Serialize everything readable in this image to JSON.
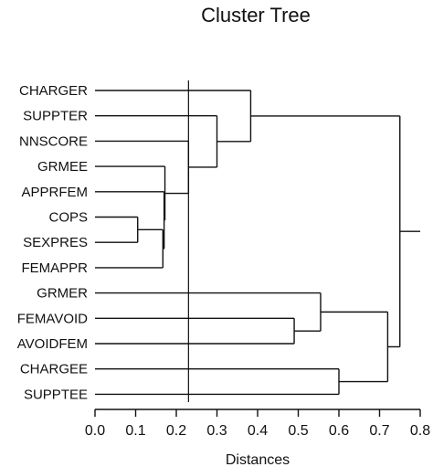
{
  "chart_data": {
    "type": "dendrogram",
    "title": "Cluster Tree",
    "xlabel": "Distances",
    "ylabel": "",
    "xlim": [
      0.0,
      0.8
    ],
    "x_ticks": [
      "0.0",
      "0.1",
      "0.2",
      "0.3",
      "0.4",
      "0.5",
      "0.6",
      "0.7",
      "0.8"
    ],
    "grid": false,
    "legend": "none",
    "reference_line": 0.23,
    "leaves": [
      "CHARGER",
      "SUPPTER",
      "NNSCORE",
      "GRMEE",
      "APPRFEM",
      "COPS",
      "SEXPRES",
      "FEMAPPR",
      "GRMER",
      "FEMAVOID",
      "AVOIDFEM",
      "CHARGEE",
      "SUPPTEE"
    ],
    "merges": [
      {
        "id": "m1",
        "left": "COPS",
        "right": "SEXPRES",
        "height": 0.105
      },
      {
        "id": "m2",
        "left": "m1",
        "right": "FEMAPPR",
        "height": 0.167
      },
      {
        "id": "m3",
        "left": "APPRFEM",
        "right": "m2",
        "height": 0.17
      },
      {
        "id": "m4",
        "left": "GRMEE",
        "right": "m3",
        "height": 0.172
      },
      {
        "id": "m5",
        "left": "NNSCORE",
        "right": "m4",
        "height": 0.23
      },
      {
        "id": "m6",
        "left": "SUPPTER",
        "right": "m5",
        "height": 0.3
      },
      {
        "id": "m7",
        "left": "CHARGER",
        "right": "m6",
        "height": 0.383
      },
      {
        "id": "m8",
        "left": "FEMAVOID",
        "right": "AVOIDFEM",
        "height": 0.49
      },
      {
        "id": "m9",
        "left": "GRMER",
        "right": "m8",
        "height": 0.555
      },
      {
        "id": "m10",
        "left": "CHARGEE",
        "right": "SUPPTEE",
        "height": 0.6
      },
      {
        "id": "m11",
        "left": "m9",
        "right": "m10",
        "height": 0.72
      },
      {
        "id": "m12",
        "left": "m7",
        "right": "m11",
        "height": 0.75
      }
    ],
    "root_extends_to": 0.8
  },
  "colors": {
    "ink": "#111111",
    "background": "#ffffff"
  }
}
